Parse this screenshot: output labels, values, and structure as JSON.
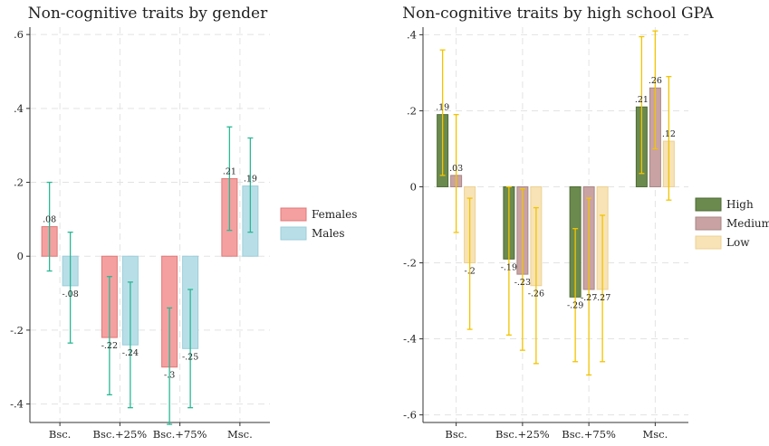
{
  "chart_data": [
    {
      "type": "bar",
      "title": "Non-cognitive traits by gender",
      "categories": [
        "Bsc.",
        "Bsc.+25%",
        "Bsc.+75%",
        "Msc."
      ],
      "ylim": [
        -0.45,
        0.62
      ],
      "yticks": [
        -0.4,
        -0.2,
        0,
        0.2,
        0.4,
        0.6
      ],
      "ytick_labels": [
        "-.4",
        "-.2",
        "0",
        ".2",
        ".4",
        ".6"
      ],
      "grid": true,
      "legend_position": "right",
      "series": [
        {
          "name": "Females",
          "color": "#f4a0a0",
          "edge": "#e07878",
          "errcolor": "#2ab893",
          "values": [
            0.08,
            -0.22,
            -0.3,
            0.21
          ],
          "labels": [
            ".08",
            "-.22",
            "-.3",
            ".21"
          ],
          "ci_low": [
            -0.04,
            -0.375,
            -0.455,
            0.07
          ],
          "ci_high": [
            0.2,
            -0.055,
            -0.14,
            0.35
          ]
        },
        {
          "name": "Males",
          "color": "#b8dfe8",
          "edge": "#9ccdd9",
          "errcolor": "#2ab893",
          "values": [
            -0.08,
            -0.24,
            -0.25,
            0.19
          ],
          "labels": [
            "-.08",
            "-.24",
            "-.25",
            ".19"
          ],
          "ci_low": [
            -0.235,
            -0.41,
            -0.41,
            0.065
          ],
          "ci_high": [
            0.065,
            -0.07,
            -0.09,
            0.32
          ]
        }
      ]
    },
    {
      "type": "bar",
      "title": "Non-cognitive traits by high school GPA",
      "categories": [
        "Bsc.",
        "Bsc.+25%",
        "Bsc.+75%",
        "Msc."
      ],
      "ylim": [
        -0.62,
        0.42
      ],
      "yticks": [
        -0.6,
        -0.4,
        -0.2,
        0,
        0.2,
        0.4
      ],
      "ytick_labels": [
        "-.6",
        "-.4",
        "-.2",
        "0",
        ".2",
        ".4"
      ],
      "grid": true,
      "legend_position": "right",
      "series": [
        {
          "name": "High",
          "color": "#6b8a4e",
          "edge": "#4f6b36",
          "errcolor": "#f2c400",
          "values": [
            0.19,
            -0.19,
            -0.29,
            0.21
          ],
          "labels": [
            ".19",
            "-.19",
            "-.29",
            ".21"
          ],
          "ci_low": [
            0.03,
            -0.39,
            -0.46,
            0.035
          ],
          "ci_high": [
            0.36,
            0.0,
            -0.11,
            0.395
          ]
        },
        {
          "name": "Medium",
          "color": "#c9a3a3",
          "edge": "#a98686",
          "errcolor": "#f2c400",
          "values": [
            0.03,
            -0.23,
            -0.27,
            0.26
          ],
          "labels": [
            ".03",
            "-.23",
            "-.27",
            ".26"
          ],
          "ci_low": [
            -0.12,
            -0.43,
            -0.495,
            0.1
          ],
          "ci_high": [
            0.19,
            -0.005,
            -0.03,
            0.41
          ]
        },
        {
          "name": "Low",
          "color": "#f7e3b5",
          "edge": "#ecd194",
          "errcolor": "#f2c400",
          "values": [
            -0.2,
            -0.26,
            -0.27,
            0.12
          ],
          "labels": [
            "-.2",
            "-.26",
            "-.27",
            ".12"
          ],
          "ci_low": [
            -0.375,
            -0.465,
            -0.46,
            -0.035
          ],
          "ci_high": [
            -0.03,
            -0.055,
            -0.075,
            0.29
          ]
        }
      ]
    }
  ]
}
